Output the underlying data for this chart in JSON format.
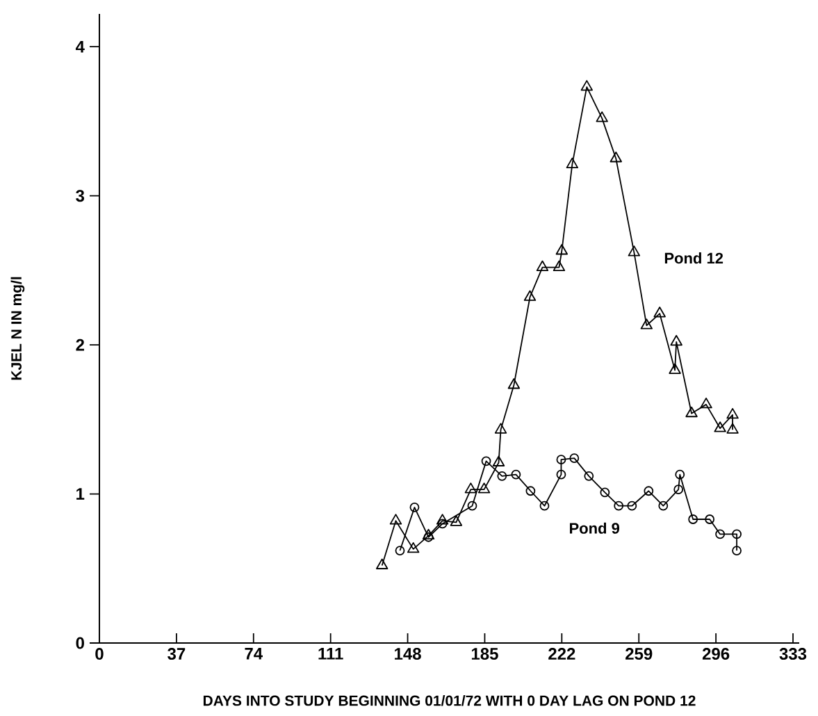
{
  "chart_data": {
    "type": "line",
    "xlabel": "DAYS INTO STUDY BEGINNING 01/01/72 WITH 0 DAY LAG ON POND 12",
    "ylabel": "KJEL N IN mg/l",
    "xlim": [
      0,
      336
    ],
    "ylim": [
      0,
      4.22
    ],
    "xticks": [
      0,
      37,
      74,
      111,
      148,
      185,
      222,
      259,
      296,
      333
    ],
    "yticks": [
      0,
      1,
      2,
      3,
      4
    ],
    "grid": false,
    "series": [
      {
        "name": "Pond 12",
        "color": "#000000",
        "marker": "triangle",
        "line_style": "solid",
        "x": [
          135.7,
          142.3,
          150.7,
          158,
          164.7,
          171.3,
          178.3,
          184.7,
          191.7,
          192.7,
          199,
          206.7,
          212.7,
          220.7,
          222,
          227,
          234,
          241.3,
          248,
          256.7,
          262.7,
          269,
          276.3,
          277,
          284.3,
          291.3,
          298,
          304,
          304
        ],
        "values": [
          0.52,
          0.82,
          0.63,
          0.72,
          0.82,
          0.81,
          1.03,
          1.03,
          1.21,
          1.43,
          1.73,
          2.32,
          2.52,
          2.52,
          2.63,
          3.21,
          3.73,
          3.52,
          3.25,
          2.62,
          2.13,
          2.21,
          1.83,
          2.02,
          1.54,
          1.6,
          1.44,
          1.53,
          1.43
        ]
      },
      {
        "name": "Pond 9",
        "color": "#000000",
        "marker": "circle",
        "line_style": "solid",
        "x": [
          144.3,
          151.3,
          158,
          164.7,
          179,
          185.7,
          193.3,
          200,
          207,
          213.7,
          221.7,
          221.7,
          228,
          235,
          242.7,
          249.3,
          255.7,
          263.7,
          270.7,
          278,
          278.7,
          285,
          293,
          298,
          306,
          306
        ],
        "values": [
          0.62,
          0.91,
          0.71,
          0.8,
          0.92,
          1.22,
          1.12,
          1.13,
          1.02,
          0.92,
          1.13,
          1.23,
          1.24,
          1.12,
          1.01,
          0.92,
          0.92,
          1.02,
          0.92,
          1.03,
          1.13,
          0.83,
          0.83,
          0.73,
          0.73,
          0.62
        ]
      }
    ]
  }
}
